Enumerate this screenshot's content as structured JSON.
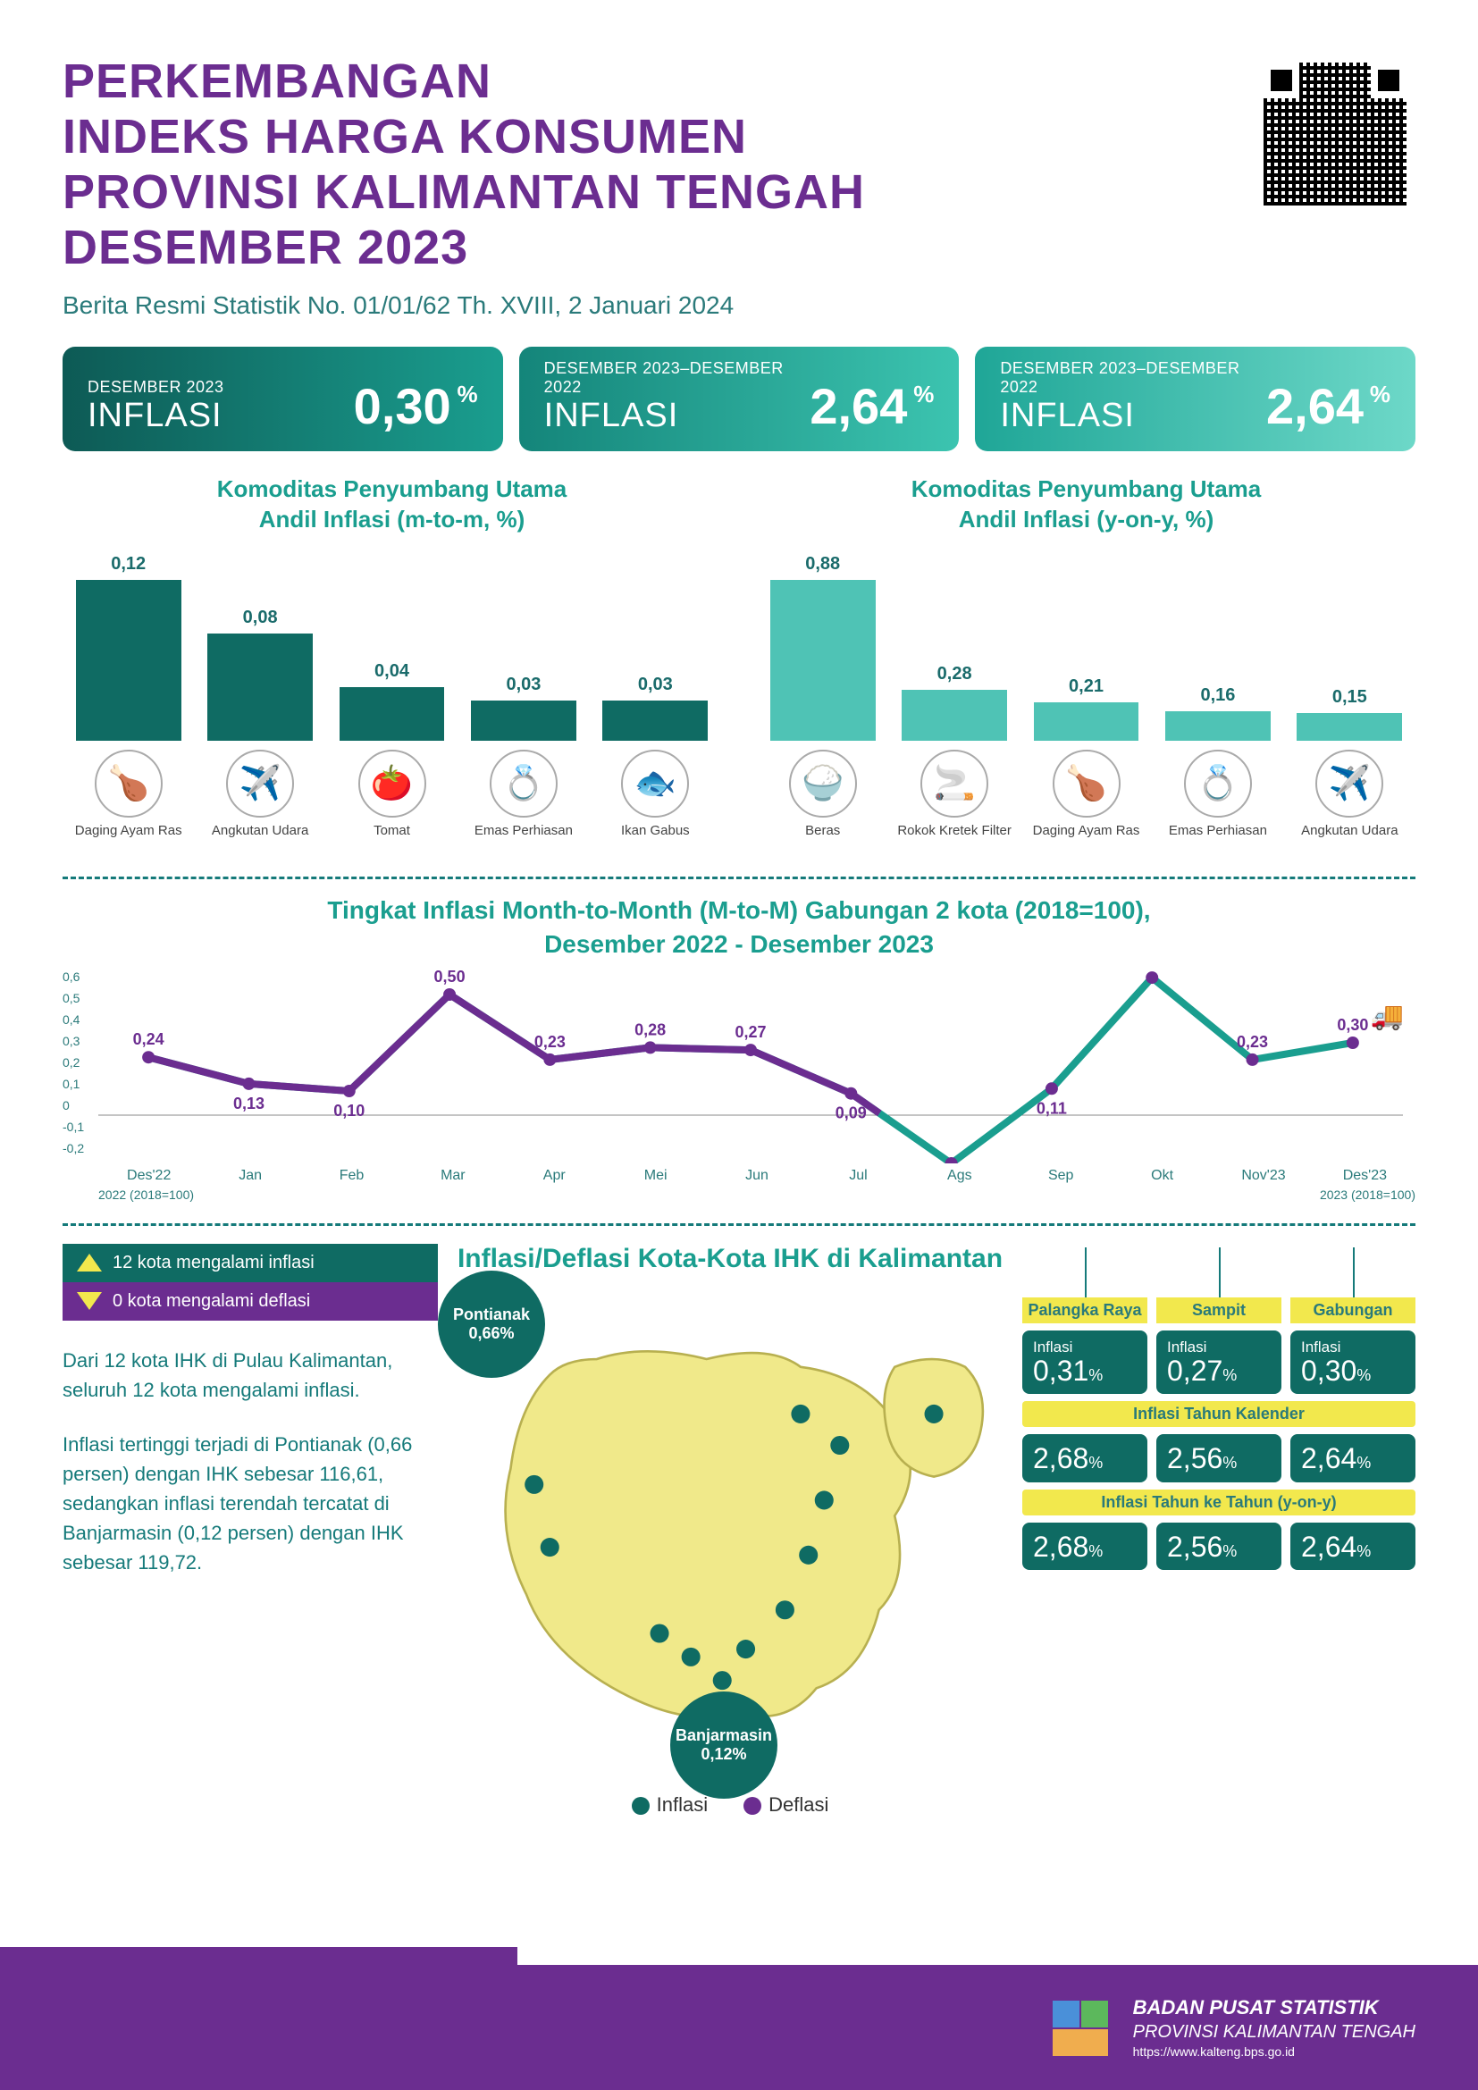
{
  "header": {
    "title_lines": [
      "PERKEMBANGAN",
      "INDEKS HARGA KONSUMEN",
      "PROVINSI KALIMANTAN TENGAH",
      "DESEMBER 2023"
    ],
    "title_color": "#6b2d90",
    "subtitle": "Berita Resmi Statistik No. 01/01/62 Th. XVIII, 2 Januari 2024",
    "subtitle_color": "#2a7a7a"
  },
  "stat_pills": [
    {
      "period": "DESEMBER 2023",
      "metric": "INFLASI",
      "value": "0,30",
      "unit": "%",
      "grad_from": "#0d5a55",
      "grad_to": "#1a9e8f"
    },
    {
      "period": "DESEMBER 2023–DESEMBER 2022",
      "metric": "INFLASI",
      "value": "2,64",
      "unit": "%",
      "grad_from": "#14857a",
      "grad_to": "#3cc4b0"
    },
    {
      "period": "DESEMBER 2023–DESEMBER 2022",
      "metric": "INFLASI",
      "value": "2,64",
      "unit": "%",
      "grad_from": "#1fa697",
      "grad_to": "#6dd8c8"
    }
  ],
  "bar_section": {
    "left": {
      "title": "Komoditas Penyumbang Utama\nAndil Inflasi  (m-to-m, %)",
      "bar_color": "#0f6b63",
      "max_value": 0.12,
      "items": [
        {
          "label": "0,12",
          "value": 0.12,
          "icon": "🍗",
          "caption": "Daging Ayam Ras"
        },
        {
          "label": "0,08",
          "value": 0.08,
          "icon": "✈️",
          "caption": "Angkutan Udara"
        },
        {
          "label": "0,04",
          "value": 0.04,
          "icon": "🍅",
          "caption": "Tomat"
        },
        {
          "label": "0,03",
          "value": 0.03,
          "icon": "💍",
          "caption": "Emas Perhiasan"
        },
        {
          "label": "0,03",
          "value": 0.03,
          "icon": "🐟",
          "caption": "Ikan Gabus"
        }
      ]
    },
    "right": {
      "title": "Komoditas Penyumbang Utama\nAndil Inflasi  (y-on-y, %)",
      "bar_color": "#4fc3b5",
      "max_value": 0.88,
      "items": [
        {
          "label": "0,88",
          "value": 0.88,
          "icon": "🍚",
          "caption": "Beras"
        },
        {
          "label": "0,28",
          "value": 0.28,
          "icon": "🚬",
          "caption": "Rokok Kretek Filter"
        },
        {
          "label": "0,21",
          "value": 0.21,
          "icon": "🍗",
          "caption": "Daging Ayam Ras"
        },
        {
          "label": "0,16",
          "value": 0.16,
          "icon": "💍",
          "caption": "Emas Perhiasan"
        },
        {
          "label": "0,15",
          "value": 0.15,
          "icon": "✈️",
          "caption": "Angkutan Udara"
        }
      ]
    }
  },
  "line_chart": {
    "title": "Tingkat Inflasi Month-to-Month (M-to-M) Gabungan 2 kota (2018=100),\nDesember 2022 - Desember 2023",
    "y_ticks": [
      "0,6",
      "0,5",
      "0,4",
      "0,3",
      "0,2",
      "0,1",
      "0",
      "-0,1",
      "-0,2"
    ],
    "y_min": -0.2,
    "y_max": 0.6,
    "x_labels": [
      "Des'22",
      "Jan",
      "Feb",
      "Mar",
      "Apr",
      "Mei",
      "Jun",
      "Jul",
      "Ags",
      "Sep",
      "Okt",
      "Nov'23",
      "Des'23"
    ],
    "values": [
      0.24,
      0.13,
      0.1,
      0.5,
      0.23,
      0.28,
      0.27,
      0.09,
      -0.2,
      0.11,
      0.57,
      0.23,
      0.3
    ],
    "value_labels": [
      "0,24",
      "0,13",
      "0,10",
      "0,50",
      "0,23",
      "0,28",
      "0,27",
      "0,09",
      "-0,20",
      "0,11",
      "0,57",
      "0,23",
      "0,30"
    ],
    "line_color_main": "#1a9e8f",
    "line_color_overlay": "#6b2d90",
    "line_width": 8,
    "note_left": "2022 (2018=100)",
    "note_right": "2023 (2018=100)",
    "truck_icon": "🚚"
  },
  "map_section": {
    "title": "Inflasi/Deflasi Kota-Kota IHK di Kalimantan",
    "badge_inflasi": {
      "text": "12 kota mengalami inflasi",
      "bg": "#0f6b63",
      "tri_color": "#f2e84d"
    },
    "badge_deflasi": {
      "text": "0 kota mengalami deflasi",
      "bg": "#6b2d90",
      "tri_color": "#f2e84d"
    },
    "paragraph1": "Dari 12 kota IHK di Pulau Kalimantan, seluruh 12 kota mengalami inflasi.",
    "paragraph2": "Inflasi tertinggi terjadi di Pontianak (0,66 persen) dengan IHK sebesar 116,61, sedangkan inflasi terendah tercatat di Banjarmasin (0,12 persen) dengan IHK sebesar 119,72.",
    "map_fill": "#f0e98a",
    "map_stroke": "#b8b050",
    "dot_color": "#0f6b63",
    "callouts": {
      "pontianak": {
        "name": "Pontianak",
        "value": "0,66%"
      },
      "banjarmasin": {
        "name": "Banjarmasin",
        "value": "0,12%"
      }
    },
    "legend": {
      "inflasi_label": "Inflasi",
      "inflasi_color": "#0f6b63",
      "deflasi_label": "Deflasi",
      "deflasi_color": "#6b2d90"
    }
  },
  "city_table": {
    "headers": [
      "Palangka Raya",
      "Sampit",
      "Gabungan"
    ],
    "row_inflasi_label": "Inflasi",
    "row_inflasi": [
      "0,31",
      "0,27",
      "0,30"
    ],
    "section2_label": "Inflasi Tahun Kalender",
    "row2": [
      "2,68",
      "2,56",
      "2,64"
    ],
    "section3_label": "Inflasi Tahun ke Tahun (y-on-y)",
    "row3": [
      "2,68",
      "2,56",
      "2,64"
    ],
    "cell_bg": "#0f6b63",
    "header_bg": "#f2e84d"
  },
  "footer": {
    "line1": "BADAN PUSAT STATISTIK",
    "line2": "PROVINSI KALIMANTAN TENGAH",
    "line3": "https://www.kalteng.bps.go.id",
    "bg": "#6b2d90"
  }
}
